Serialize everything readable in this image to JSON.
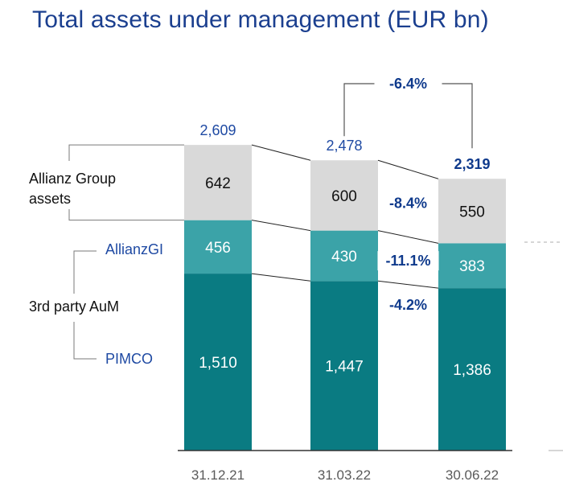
{
  "chart_data": {
    "type": "bar",
    "stacked": true,
    "title": "Total assets under management (EUR bn)",
    "categories": [
      "31.12.21",
      "31.03.22",
      "30.06.22"
    ],
    "series": [
      {
        "name": "PIMCO",
        "values": [
          1510,
          1447,
          1386
        ],
        "labels": [
          "1,510",
          "1,447",
          "1,386"
        ],
        "color": "#0a7b82"
      },
      {
        "name": "AllianzGI",
        "values": [
          456,
          430,
          383
        ],
        "labels": [
          "456",
          "430",
          "383"
        ],
        "color": "#3ba3a8"
      },
      {
        "name": "Allianz Group assets",
        "values": [
          642,
          600,
          550
        ],
        "labels": [
          "642",
          "600",
          "550"
        ],
        "color": "#d9d9d9"
      }
    ],
    "totals": [
      "2,609",
      "2,478",
      "2,319"
    ],
    "changes": {
      "total": "-6.4%",
      "allianz_group_assets": "-8.4%",
      "allianzgi": "-11.1%",
      "pimco": "-4.2%"
    },
    "group_labels": {
      "allianz_group_assets": "Allianz Group\nassets",
      "third_party": "3rd party AuM",
      "allianzgi": "AllianzGI",
      "pimco": "PIMCO"
    },
    "ylim": [
      0,
      2609
    ],
    "grid": false,
    "legend": "left"
  }
}
